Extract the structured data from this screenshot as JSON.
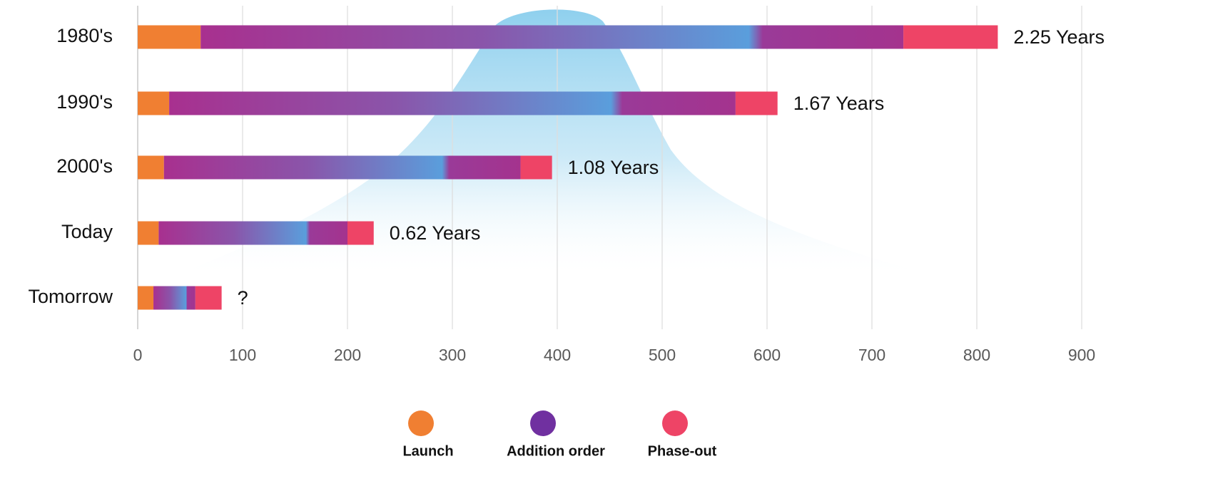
{
  "chart_data": {
    "type": "stacked-barh",
    "categories": [
      "1980's",
      "1990's",
      "2000's",
      "Today",
      "Tomorrow"
    ],
    "series": [
      {
        "name": "Launch",
        "color": "#f07f32",
        "values": [
          60,
          30,
          25,
          20,
          15
        ]
      },
      {
        "name": "Addition order",
        "color": "#7030a0",
        "values": [
          670,
          540,
          340,
          180,
          40
        ]
      },
      {
        "name": "Phase-out",
        "color": "#ee4466",
        "values": [
          90,
          40,
          30,
          25,
          25
        ]
      }
    ],
    "annotations": [
      "2.25 Years",
      "1.67 Years",
      "1.08 Years",
      "0.62 Years",
      "?"
    ],
    "xlim": [
      0,
      900
    ],
    "xticks": [
      0,
      100,
      200,
      300,
      400,
      500,
      600,
      700,
      800,
      900
    ],
    "grid": true
  }
}
